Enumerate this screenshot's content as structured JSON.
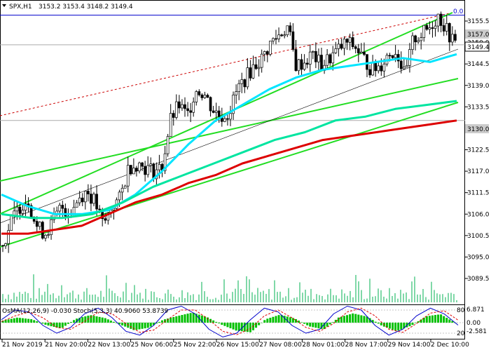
{
  "header": {
    "symbol": "SPX,H1",
    "ohlc": "3153.2 3153.4 3148.2 3149.4"
  },
  "colors": {
    "background": "#ffffff",
    "candle": "#000000",
    "volume": "#00b050",
    "ema_fast": "#00e5ff",
    "ema_mid": "#00e5a0",
    "ema_slow": "#dd0000",
    "channel": "#22dd22",
    "hline": "#0000cc",
    "grey_line": "#aaaaaa",
    "resistance_dashed": "#cc0000",
    "trend_thin": "#000000",
    "price_tag_bg": "#ffffff",
    "level_tag_bg": "#cccccc",
    "osma_bars": "#00c000",
    "stoch_main": "#0000cc",
    "stoch_signal": "#dd0000"
  },
  "price_scale": [
    "3155.5",
    "3150.0",
    "3144.5",
    "3139.0",
    "3133.5",
    "3128.0",
    "3122.5",
    "3117.0",
    "3111.5",
    "3106.0",
    "3100.5",
    "3095.0",
    "3089.5"
  ],
  "price_tags": {
    "current": "3149.4",
    "level_top": "3157.0",
    "level_low": "3130.0",
    "fib_zero": "0.0"
  },
  "time_labels": [
    "21 Nov 2019",
    "21 Nov 20:00",
    "22 Nov 13:00",
    "25 Nov 06:00",
    "25 Nov 22:00",
    "26 Nov 15:00",
    "27 Nov 08:00",
    "28 Nov 01:00",
    "28 Nov 17:00",
    "29 Nov 14:00",
    "2 Dec 10:00"
  ],
  "indicator_header": "OsMA(12,26,9) -0.030  Stoch(5,3,3) 40.9060 53.8739",
  "indicator_scale": [
    "6.871",
    "0.00",
    "-2.581",
    "80",
    "20"
  ],
  "chart_data": {
    "type": "line",
    "title": "SPX,H1",
    "ylim": [
      3086.5,
      3161.5
    ],
    "x_labels": [
      "21 Nov 2019",
      "21 Nov 20:00",
      "22 Nov 13:00",
      "25 Nov 06:00",
      "25 Nov 22:00",
      "26 Nov 15:00",
      "27 Nov 08:00",
      "28 Nov 01:00",
      "28 Nov 17:00",
      "29 Nov 14:00",
      "2 Dec 10:00"
    ],
    "close_path": [
      3098,
      3104,
      3108,
      3110,
      3103,
      3101,
      3104,
      3108,
      3106,
      3110,
      3112,
      3109,
      3103,
      3108,
      3110,
      3118,
      3119,
      3118,
      3117,
      3118,
      3130,
      3134,
      3131,
      3138,
      3137,
      3133,
      3131,
      3132,
      3138,
      3141,
      3144,
      3146,
      3150,
      3152,
      3154,
      3144,
      3145,
      3147,
      3144,
      3146,
      3148,
      3150,
      3149,
      3146,
      3143,
      3144,
      3147,
      3148,
      3141,
      3151,
      3152,
      3154,
      3157,
      3153,
      3149.4
    ],
    "ohlc_last": {
      "open": 3153.2,
      "high": 3153.4,
      "low": 3148.2,
      "close": 3149.4
    },
    "series": [
      {
        "name": "EMA fast",
        "values": [
          3111,
          3108,
          3106,
          3106,
          3107,
          3111,
          3117,
          3124,
          3130,
          3134,
          3138,
          3141,
          3143,
          3144,
          3145,
          3146,
          3145,
          3147
        ]
      },
      {
        "name": "EMA mid",
        "values": [
          3106,
          3105,
          3105,
          3106,
          3109,
          3113,
          3116,
          3119,
          3122,
          3125,
          3127,
          3130,
          3131,
          3133,
          3134,
          3135
        ]
      },
      {
        "name": "EMA slow",
        "values": [
          3101,
          3101,
          3102,
          3103,
          3106,
          3109,
          3111,
          3114,
          3116,
          3119,
          3121,
          3123,
          3125,
          3126,
          3127,
          3128,
          3129,
          3130
        ]
      }
    ],
    "levels": [
      3157.0,
      3149.4,
      3130.0
    ],
    "grid": false,
    "osma": [
      0.5,
      1.2,
      0.8,
      -0.6,
      -1.4,
      0.9,
      1.8,
      1.1,
      -0.4,
      -1.8,
      -1.2,
      0.7,
      1.6,
      2.4,
      1.3,
      -0.5,
      -1.9,
      -2.3,
      0.8,
      1.9,
      1.0,
      -0.9,
      -1.6,
      1.2,
      2.2,
      1.4,
      -0.8,
      -2.0,
      -0.7,
      1.5,
      2.0,
      -0.03
    ],
    "stoch_main": [
      55,
      80,
      75,
      40,
      20,
      35,
      70,
      85,
      60,
      25,
      15,
      40,
      80,
      90,
      70,
      30,
      10,
      20,
      55,
      85,
      75,
      40,
      20,
      30,
      70,
      90,
      80,
      40,
      15,
      30,
      65,
      85,
      70,
      40.9
    ],
    "stoch_signal": [
      50,
      65,
      75,
      60,
      35,
      30,
      50,
      75,
      70,
      45,
      22,
      28,
      55,
      80,
      80,
      55,
      25,
      16,
      32,
      65,
      80,
      60,
      35,
      25,
      45,
      75,
      85,
      65,
      30,
      22,
      45,
      72,
      78,
      53.9
    ]
  }
}
